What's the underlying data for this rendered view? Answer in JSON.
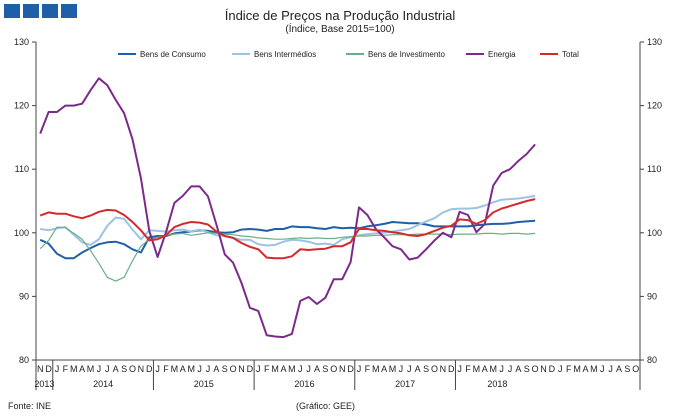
{
  "header": {
    "title": "Índice de Preços na Produção Industrial",
    "subtitle": "(Índice, Base 2015=100)"
  },
  "footer": {
    "source": "Fonte: INE",
    "credit": "(Gráfico: GEE)"
  },
  "colors": {
    "logo": "#1f5fa7"
  },
  "chart_data": {
    "type": "line",
    "title": "Índice de Preços na Produção Industrial",
    "subtitle": "(Índice, Base 2015=100)",
    "ylim": [
      80,
      130
    ],
    "yticks": [
      80,
      90,
      100,
      110,
      120,
      130
    ],
    "y2ticks": [
      80,
      90,
      100,
      110,
      120,
      130
    ],
    "gridlines": false,
    "legend_position": "top",
    "month_letters": [
      "N",
      "D",
      "J",
      "F",
      "M",
      "A",
      "M",
      "J",
      "J",
      "A",
      "S",
      "O",
      "N",
      "D",
      "J",
      "F",
      "M",
      "A",
      "M",
      "J",
      "J",
      "A",
      "S",
      "O",
      "N",
      "D",
      "J",
      "F",
      "M",
      "A",
      "M",
      "J",
      "J",
      "A",
      "S",
      "O",
      "N",
      "D",
      "J",
      "F",
      "M",
      "A",
      "M",
      "J",
      "J",
      "A",
      "S",
      "O",
      "N",
      "D",
      "J",
      "F",
      "M",
      "A",
      "M",
      "J",
      "J",
      "A",
      "S",
      "O",
      "N",
      "D",
      "J",
      "F",
      "M",
      "A",
      "M",
      "J",
      "J",
      "A",
      "S",
      "O"
    ],
    "years": [
      {
        "label": "2013",
        "start": 0,
        "end": 1
      },
      {
        "label": "2014",
        "start": 2,
        "end": 13
      },
      {
        "label": "2015",
        "start": 14,
        "end": 25
      },
      {
        "label": "2016",
        "start": 26,
        "end": 37
      },
      {
        "label": "2017",
        "start": 38,
        "end": 49
      },
      {
        "label": "2018",
        "start": 50,
        "end": 59
      }
    ],
    "series": [
      {
        "name": "Bens de Consumo",
        "color": "#1f5fa7",
        "values": [
          98.9,
          98.3,
          96.7,
          96.0,
          96.0,
          96.9,
          97.6,
          98.2,
          98.5,
          98.6,
          98.2,
          97.4,
          96.9,
          99.3,
          99.5,
          99.5,
          99.9,
          100.1,
          100.2,
          100.4,
          100.3,
          100.1,
          100.0,
          100.1,
          100.5,
          100.6,
          100.5,
          100.3,
          100.6,
          100.6,
          101.0,
          100.9,
          100.9,
          100.7,
          100.6,
          100.9,
          100.7,
          100.8,
          100.7,
          101.0,
          101.2,
          101.4,
          101.7,
          101.6,
          101.5,
          101.5,
          101.3,
          101.0,
          101.0,
          101.0,
          101.0,
          101.0,
          101.2,
          101.3,
          101.4,
          101.4,
          101.5,
          101.7,
          101.8,
          101.9
        ]
      },
      {
        "name": "Bens Intermédios",
        "color": "#9cc3e4",
        "values": [
          100.6,
          100.4,
          100.7,
          100.9,
          99.7,
          98.5,
          98.1,
          99.0,
          101.1,
          102.4,
          102.2,
          100.5,
          99.0,
          100.4,
          100.3,
          100.2,
          100.4,
          100.5,
          100.2,
          100.5,
          100.1,
          99.6,
          99.5,
          99.2,
          98.9,
          98.9,
          98.2,
          98.0,
          98.1,
          98.6,
          98.9,
          98.8,
          98.6,
          98.2,
          98.3,
          98.1,
          99.0,
          99.3,
          99.6,
          99.8,
          99.9,
          100.0,
          100.2,
          100.4,
          100.6,
          101.2,
          101.8,
          102.3,
          103.2,
          103.7,
          103.8,
          103.8,
          103.9,
          104.3,
          104.8,
          105.2,
          105.3,
          105.4,
          105.6,
          105.8
        ]
      },
      {
        "name": "Bens de Investimento",
        "color": "#6aaf86",
        "values": [
          97.5,
          98.8,
          100.9,
          100.8,
          99.9,
          99.0,
          97.2,
          95.2,
          93.0,
          92.4,
          93.0,
          95.6,
          97.9,
          99.0,
          99.3,
          99.6,
          99.8,
          99.9,
          99.6,
          99.8,
          100.0,
          99.9,
          99.8,
          99.7,
          99.5,
          99.4,
          99.2,
          99.1,
          99.0,
          99.0,
          99.1,
          99.2,
          99.1,
          99.2,
          99.1,
          99.1,
          99.3,
          99.4,
          99.5,
          99.5,
          99.6,
          99.6,
          99.7,
          99.7,
          99.7,
          99.8,
          99.8,
          99.8,
          99.8,
          99.7,
          99.8,
          99.8,
          99.8,
          99.9,
          99.9,
          99.8,
          99.9,
          99.9,
          99.8,
          99.9
        ]
      },
      {
        "name": "Energia",
        "color": "#7b2a8c",
        "values": [
          115.6,
          119.0,
          119.0,
          120.0,
          120.0,
          120.3,
          122.4,
          124.3,
          123.2,
          120.9,
          118.8,
          114.7,
          108.6,
          100.3,
          96.2,
          100.1,
          104.7,
          105.8,
          107.3,
          107.3,
          105.7,
          101.3,
          96.6,
          95.3,
          92.1,
          88.2,
          87.7,
          83.9,
          83.7,
          83.6,
          84.1,
          89.3,
          89.9,
          88.8,
          89.8,
          92.7,
          92.7,
          95.4,
          104.0,
          102.8,
          100.6,
          99.3,
          97.9,
          97.4,
          95.8,
          96.1,
          97.4,
          98.8,
          100.0,
          99.3,
          103.3,
          102.8,
          100.1,
          101.4,
          107.4,
          109.4,
          110.0,
          111.3,
          112.4,
          113.9
        ]
      },
      {
        "name": "Total",
        "color": "#d42a2a",
        "values": [
          102.7,
          103.2,
          103.0,
          103.0,
          102.6,
          102.3,
          102.7,
          103.3,
          103.6,
          103.5,
          102.8,
          101.7,
          100.4,
          98.8,
          99.0,
          99.6,
          100.9,
          101.4,
          101.7,
          101.6,
          101.3,
          100.2,
          99.5,
          99.2,
          98.4,
          97.8,
          97.4,
          96.1,
          96.0,
          96.0,
          96.3,
          97.4,
          97.3,
          97.4,
          97.5,
          97.9,
          97.9,
          98.5,
          100.6,
          100.6,
          100.4,
          100.3,
          100.1,
          99.9,
          99.6,
          99.5,
          99.8,
          100.3,
          100.8,
          101.1,
          102.1,
          102.0,
          101.4,
          102.0,
          103.2,
          103.8,
          104.2,
          104.6,
          105.0,
          105.3
        ]
      }
    ]
  }
}
